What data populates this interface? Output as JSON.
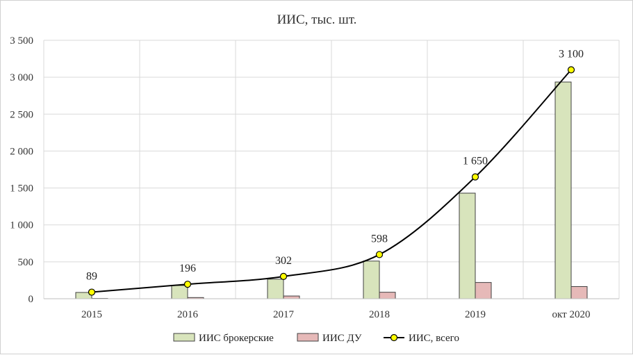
{
  "chart_data": {
    "type": "bar",
    "title": "ИИС, тыс. шт.",
    "categories": [
      "2015",
      "2016",
      "2017",
      "2018",
      "2019",
      "окт 2020"
    ],
    "series": [
      {
        "name": "ИИС брокерские",
        "kind": "bar",
        "color": "#d8e4bc",
        "values": [
          85,
          180,
          265,
          510,
          1430,
          2935
        ]
      },
      {
        "name": "ИИС ДУ",
        "kind": "bar",
        "color": "#e6b9b8",
        "values": [
          4,
          16,
          37,
          88,
          220,
          165
        ]
      },
      {
        "name": "ИИС, всего",
        "kind": "line",
        "color": "#000000",
        "marker_color": "#ffff00",
        "smooth": true,
        "values": [
          89,
          196,
          302,
          598,
          1650,
          3100
        ]
      }
    ],
    "data_labels": [
      "89",
      "196",
      "302",
      "598",
      "1 650",
      "3 100"
    ],
    "ylim": [
      0,
      3500
    ],
    "yticks": [
      0,
      500,
      1000,
      1500,
      2000,
      2500,
      3000,
      3500
    ],
    "ytick_labels": [
      "0",
      "500",
      "1 000",
      "1 500",
      "2 000",
      "2 500",
      "3 000",
      "3 500"
    ],
    "grid": true,
    "legend_position": "bottom"
  }
}
